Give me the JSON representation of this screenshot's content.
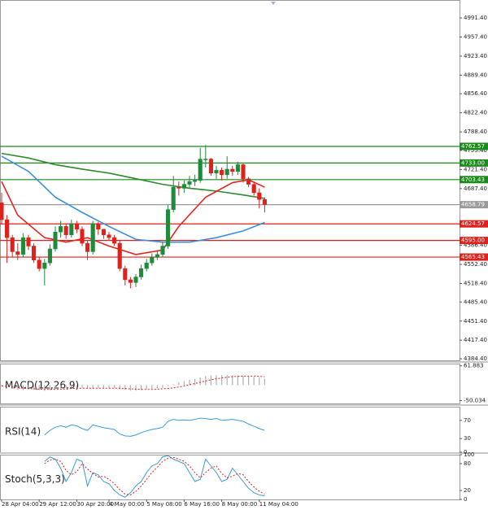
{
  "chart_data": [
    {
      "type": "candlestick",
      "categories": [
        "28 Apr 04:00",
        null,
        null,
        null,
        null,
        null,
        null,
        "29 Apr 12:00",
        null,
        null,
        null,
        null,
        null,
        null,
        "30 Apr 20:00",
        null,
        null,
        null,
        null,
        null,
        "4 May 00:00",
        null,
        null,
        null,
        null,
        null,
        null,
        "5 May 08:00",
        null,
        null,
        null,
        null,
        null,
        null,
        "6 May 16:00",
        null,
        null,
        null,
        null,
        null,
        null,
        "8 May 00:00",
        null,
        null,
        null,
        null,
        null,
        null,
        "11 May 04:00",
        null
      ],
      "open": [
        4662,
        4632,
        4600,
        4575,
        4570,
        4600,
        4585,
        4560,
        4545,
        4555,
        4580,
        4610,
        4620,
        4605,
        4625,
        4615,
        4590,
        4575,
        4625,
        4615,
        4605,
        4600,
        4590,
        4545,
        4525,
        4520,
        4530,
        4545,
        4555,
        4565,
        4570,
        4585,
        4650,
        4690,
        4688,
        4695,
        4700,
        4702,
        4740,
        4740,
        4715,
        4720,
        4712,
        4722,
        4718,
        4730,
        4705,
        4695,
        4680,
        4668
      ],
      "high": [
        4680,
        4640,
        4605,
        4590,
        4608,
        4605,
        4590,
        4565,
        4562,
        4588,
        4620,
        4630,
        4625,
        4632,
        4630,
        4620,
        4595,
        4630,
        4628,
        4612,
        4610,
        4605,
        4595,
        4550,
        4530,
        4535,
        4552,
        4562,
        4572,
        4578,
        4592,
        4658,
        4710,
        4700,
        4702,
        4710,
        4712,
        4760,
        4765,
        4742,
        4728,
        4725,
        4745,
        4728,
        4735,
        4732,
        4708,
        4700,
        4688,
        4672
      ],
      "low": [
        4625,
        4555,
        4565,
        4560,
        4565,
        4578,
        4555,
        4540,
        4515,
        4550,
        4575,
        4600,
        4598,
        4600,
        4608,
        4585,
        4560,
        4570,
        4605,
        4598,
        4595,
        4585,
        4540,
        4515,
        4510,
        4512,
        4525,
        4540,
        4550,
        4560,
        4565,
        4580,
        4645,
        4675,
        4680,
        4688,
        4692,
        4698,
        4725,
        4710,
        4705,
        4702,
        4705,
        4710,
        4712,
        4698,
        4690,
        4675,
        4652,
        4645
      ],
      "close": [
        4632,
        4600,
        4575,
        4570,
        4600,
        4585,
        4560,
        4545,
        4555,
        4580,
        4610,
        4620,
        4605,
        4625,
        4615,
        4590,
        4575,
        4625,
        4615,
        4605,
        4600,
        4590,
        4545,
        4525,
        4520,
        4530,
        4545,
        4555,
        4565,
        4570,
        4585,
        4650,
        4690,
        4688,
        4695,
        4700,
        4702,
        4740,
        4740,
        4715,
        4720,
        4712,
        4722,
        4718,
        4730,
        4705,
        4695,
        4680,
        4668,
        4658.79
      ],
      "up_color": "#1f8a3b",
      "down_color": "#e0201b",
      "lines": [
        {
          "color": "#2e8b2e",
          "x": [
            0,
            5,
            10,
            15,
            20,
            25,
            30,
            35,
            40,
            45,
            49
          ],
          "values": [
            4750,
            4742,
            4730,
            4722,
            4715,
            4705,
            4695,
            4688,
            4683,
            4676,
            4670
          ]
        },
        {
          "color": "#3a8fdc",
          "x": [
            0,
            5,
            10,
            15,
            20,
            25,
            30,
            35,
            40,
            45,
            49
          ],
          "values": [
            4745,
            4718,
            4672,
            4645,
            4620,
            4597,
            4592,
            4592,
            4600,
            4612,
            4627
          ]
        },
        {
          "color": "#e5261f",
          "x": [
            0,
            3,
            8,
            12,
            16,
            20,
            25,
            30,
            33,
            38,
            43,
            46,
            49
          ],
          "values": [
            4700,
            4640,
            4600,
            4592,
            4600,
            4585,
            4570,
            4578,
            4620,
            4672,
            4698,
            4703,
            4690
          ]
        }
      ],
      "levels": [
        {
          "value": 4762.57,
          "color": "#1a8a1a"
        },
        {
          "value": 4733,
          "label": "4733.00",
          "color": "#1a8a1a"
        },
        {
          "value": 4703.43,
          "color": "#1a8a1a"
        },
        {
          "value": 4658.79,
          "color": "#9a9a9a"
        },
        {
          "value": 4624.57,
          "color": "#e0201b"
        },
        {
          "value": 4595,
          "label": "4595.00",
          "color": "#e0201b"
        },
        {
          "value": 4565.43,
          "color": "#e0201b"
        }
      ],
      "ylim": [
        4381.5,
        5023.3
      ],
      "yticks": [
        {
          "value": 4991.4,
          "label": "4991.40"
        },
        {
          "value": 4957.4,
          "label": "4957.40"
        },
        {
          "value": 4923.4,
          "label": "4923.40"
        },
        {
          "value": 4889.4,
          "label": "4889.40"
        },
        {
          "value": 4856.4,
          "label": "4856.40"
        },
        {
          "value": 4822.4,
          "label": "4822.40"
        },
        {
          "value": 4788.4,
          "label": "4788.40"
        },
        {
          "value": 4755.4,
          "label": "4755.40"
        },
        {
          "value": 4721.4,
          "label": "4721.40"
        },
        {
          "value": 4687.4,
          "label": "4687.40"
        },
        {
          "value": 4586.4,
          "label": "4586.40"
        },
        {
          "value": 4552.4,
          "label": "4552.40"
        },
        {
          "value": 4518.4,
          "label": "4518.40"
        },
        {
          "value": 4485.4,
          "label": "4485.40"
        },
        {
          "value": 4451.4,
          "label": "4451.40"
        },
        {
          "value": 4417.4,
          "label": "4417.40"
        },
        {
          "value": 4384.4,
          "label": "4384.40"
        }
      ]
    },
    {
      "type": "macd",
      "title": "MACD(12,26,9)",
      "series": [
        {
          "color": "#b0b0b0",
          "values": [
            -5,
            -8,
            -12,
            -15,
            -16,
            -14,
            -15,
            -17,
            -18,
            -16,
            -13,
            -10,
            -9,
            -8,
            -8,
            -9,
            -11,
            -12,
            -10,
            -9,
            -9,
            -10,
            -13,
            -16,
            -18,
            -18,
            -16,
            -14,
            -12,
            -10,
            -8,
            -4,
            3,
            9,
            13,
            17,
            20,
            25,
            29,
            31,
            32,
            32,
            32,
            32,
            31,
            30,
            28,
            26,
            24,
            21
          ]
        },
        {
          "color": "#e0201b",
          "values": [
            -3,
            -4,
            -6,
            -8,
            -10,
            -11,
            -12,
            -13,
            -14,
            -14,
            -14,
            -13,
            -12,
            -11,
            -10,
            -10,
            -10,
            -10,
            -10,
            -10,
            -10,
            -10,
            -10,
            -11,
            -12,
            -13,
            -14,
            -14,
            -14,
            -13,
            -12,
            -11,
            -9,
            -6,
            -3,
            1,
            5,
            9,
            13,
            17,
            20,
            23,
            25,
            27,
            28,
            29,
            29,
            29,
            28,
            27
          ]
        }
      ],
      "ylim": [
        -59,
        69
      ],
      "yticks": [
        61.883,
        -50.034
      ]
    },
    {
      "type": "line",
      "title": "RSI(14)",
      "series": [
        {
          "color": "#3a9ad9",
          "values": [
            null,
            null,
            null,
            null,
            null,
            null,
            null,
            null,
            38,
            48,
            55,
            58,
            55,
            60,
            58,
            52,
            48,
            60,
            57,
            54,
            52,
            50,
            40,
            36,
            35,
            38,
            43,
            47,
            50,
            52,
            55,
            68,
            72,
            70,
            71,
            70,
            72,
            75,
            74,
            72,
            74,
            70,
            71,
            72,
            70,
            68,
            62,
            57,
            52,
            48
          ]
        }
      ],
      "ylim": [
        0,
        100
      ],
      "yticks": [
        70,
        30,
        0
      ]
    },
    {
      "type": "line",
      "title": "Stoch(5,3,3)",
      "series": [
        {
          "color": "#3a9ad9",
          "values": [
            null,
            null,
            null,
            null,
            null,
            null,
            null,
            null,
            85,
            95,
            90,
            70,
            40,
            60,
            90,
            85,
            30,
            60,
            55,
            40,
            35,
            20,
            10,
            5,
            15,
            30,
            40,
            60,
            75,
            80,
            95,
            98,
            90,
            85,
            80,
            60,
            40,
            45,
            90,
            75,
            60,
            40,
            45,
            70,
            55,
            40,
            25,
            15,
            10,
            8
          ]
        },
        {
          "color": "#e0201b",
          "dashed": true,
          "values": [
            null,
            null,
            null,
            null,
            null,
            null,
            null,
            null,
            80,
            88,
            90,
            85,
            65,
            55,
            62,
            80,
            68,
            58,
            50,
            52,
            45,
            35,
            22,
            12,
            10,
            18,
            30,
            45,
            60,
            72,
            85,
            92,
            94,
            90,
            85,
            75,
            60,
            48,
            60,
            70,
            75,
            58,
            48,
            52,
            58,
            55,
            40,
            28,
            18,
            12
          ]
        }
      ],
      "ylim": [
        0,
        100
      ],
      "yticks": [
        100,
        80,
        20,
        0
      ]
    }
  ]
}
